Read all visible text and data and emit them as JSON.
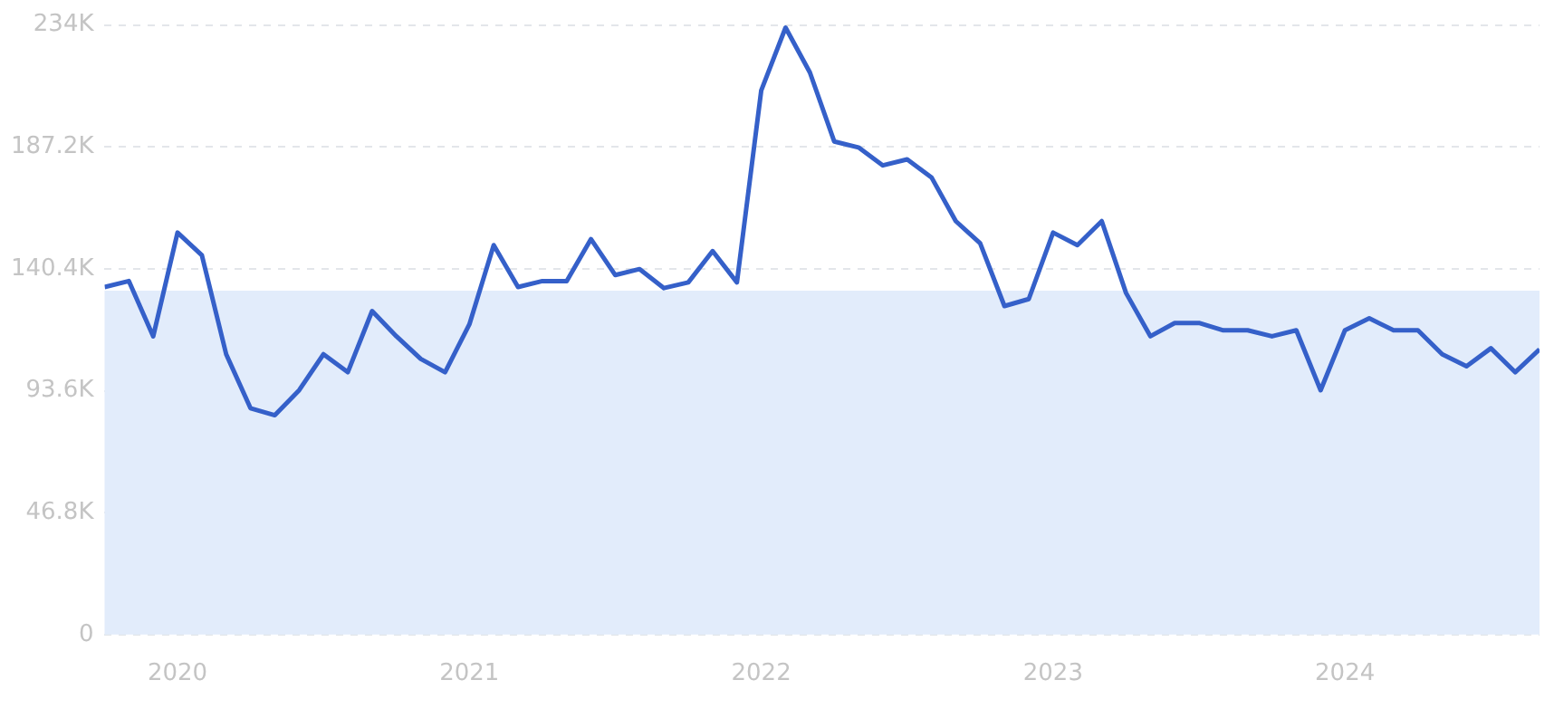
{
  "chart_data": {
    "type": "line",
    "x": [
      "2019-10",
      "2019-11",
      "2019-12",
      "2020-01",
      "2020-02",
      "2020-03",
      "2020-04",
      "2020-05",
      "2020-06",
      "2020-07",
      "2020-08",
      "2020-09",
      "2020-10",
      "2020-11",
      "2020-12",
      "2021-01",
      "2021-02",
      "2021-03",
      "2021-04",
      "2021-05",
      "2021-06",
      "2021-07",
      "2021-08",
      "2021-09",
      "2021-10",
      "2021-11",
      "2021-12",
      "2022-01",
      "2022-02",
      "2022-03",
      "2022-04",
      "2022-05",
      "2022-06",
      "2022-07",
      "2022-08",
      "2022-09",
      "2022-10",
      "2022-11",
      "2022-12",
      "2023-01",
      "2023-02",
      "2023-03",
      "2023-04",
      "2023-05",
      "2023-06",
      "2023-07",
      "2023-08",
      "2023-09",
      "2023-10",
      "2023-11",
      "2023-12",
      "2024-01",
      "2024-02",
      "2024-03",
      "2024-04",
      "2024-05",
      "2024-06",
      "2024-07",
      "2024-08",
      "2024-09"
    ],
    "series": [
      {
        "color": "#3560c9",
        "values": [
          133400,
          135700,
          114500,
          154300,
          145600,
          107600,
          86900,
          84200,
          93800,
          107600,
          100700,
          124200,
          114500,
          105800,
          100700,
          119100,
          149500,
          133400,
          135700,
          135700,
          151800,
          138000,
          140300,
          133000,
          135200,
          147200,
          135200,
          208900,
          233000,
          215800,
          189300,
          187000,
          180100,
          182400,
          175500,
          158700,
          150200,
          126100,
          128800,
          154300,
          149500,
          158700,
          131100,
          114500,
          119600,
          119600,
          116800,
          116800,
          114500,
          116800,
          93800,
          116800,
          121400,
          116800,
          116800,
          107600,
          103000,
          109900,
          100700,
          109500
        ]
      }
    ],
    "xlim": [
      "2019-10",
      "2024-09"
    ],
    "xticks": [
      {
        "value": "2020-01",
        "label": "2020"
      },
      {
        "value": "2021-01",
        "label": "2021"
      },
      {
        "value": "2022-01",
        "label": "2022"
      },
      {
        "value": "2023-01",
        "label": "2023"
      },
      {
        "value": "2024-01",
        "label": "2024"
      }
    ],
    "ylim": [
      0,
      234000
    ],
    "yticks": [
      0,
      {
        "value": 46800,
        "label": "46.8K"
      },
      {
        "value": 93600,
        "label": "93.6K"
      },
      {
        "value": 140400,
        "label": "140.4K"
      },
      {
        "value": 187200,
        "label": "187.2K"
      },
      {
        "value": 234000,
        "label": "234K"
      }
    ],
    "bands": [
      {
        "axis": "y",
        "from": 0,
        "to": 132000,
        "color": "#e2ecfb"
      }
    ],
    "grid": "y",
    "marker": "none",
    "legend": false
  }
}
